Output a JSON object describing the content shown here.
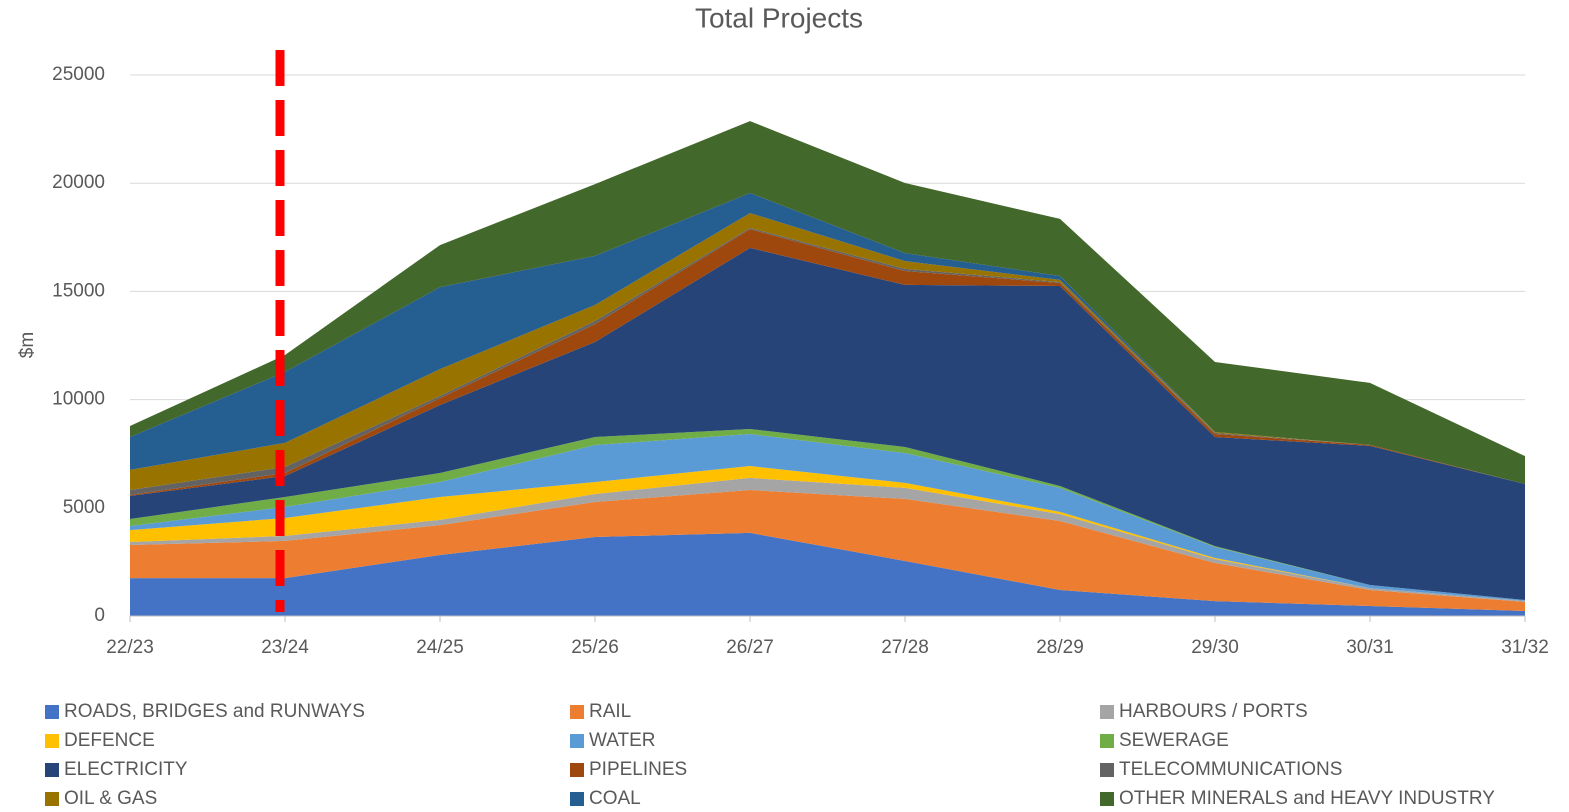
{
  "chart_data": {
    "type": "stacked_area",
    "title": "Total Projects",
    "y_label": "$m",
    "categories": [
      "22/23",
      "23/24",
      "24/25",
      "25/26",
      "26/27",
      "27/28",
      "28/29",
      "29/30",
      "30/31",
      "31/32"
    ],
    "ylim": [
      0,
      25000
    ],
    "yticks": [
      0,
      5000,
      10000,
      15000,
      20000,
      25000
    ],
    "grid": true,
    "series": [
      {
        "name": "ROADS, BRIDGES and RUNWAYS",
        "color": "#4472c4",
        "values": [
          1750,
          1750,
          2820,
          3650,
          3840,
          2540,
          1200,
          690,
          460,
          230
        ]
      },
      {
        "name": "RAIL",
        "color": "#ed7d31",
        "values": [
          1530,
          1720,
          1380,
          1620,
          1980,
          2870,
          3190,
          1760,
          740,
          420
        ]
      },
      {
        "name": "HARBOURS / PORTS",
        "color": "#a5a5a5",
        "values": [
          140,
          230,
          240,
          370,
          560,
          510,
          320,
          180,
          90,
          50
        ]
      },
      {
        "name": "DEFENCE",
        "color": "#ffc000",
        "values": [
          550,
          830,
          1060,
          550,
          550,
          230,
          100,
          50,
          0,
          0
        ]
      },
      {
        "name": "WATER",
        "color": "#5b9bd5",
        "values": [
          190,
          510,
          690,
          1710,
          1480,
          1380,
          1110,
          510,
          140,
          40
        ]
      },
      {
        "name": "SEWERAGE",
        "color": "#70ad47",
        "values": [
          320,
          460,
          420,
          370,
          230,
          280,
          90,
          40,
          0,
          0
        ]
      },
      {
        "name": "ELECTRICITY",
        "color": "#264478",
        "values": [
          1070,
          970,
          3140,
          4390,
          8370,
          7490,
          9240,
          5040,
          6430,
          5360
        ]
      },
      {
        "name": "PIPELINES",
        "color": "#9e480e",
        "values": [
          50,
          140,
          320,
          830,
          870,
          640,
          140,
          140,
          50,
          0
        ]
      },
      {
        "name": "TELECOMMUNICATIONS",
        "color": "#636363",
        "values": [
          220,
          280,
          100,
          140,
          50,
          100,
          40,
          50,
          0,
          0
        ]
      },
      {
        "name": "OIL & GAS",
        "color": "#997300",
        "values": [
          930,
          1110,
          1240,
          740,
          690,
          360,
          100,
          40,
          0,
          0
        ]
      },
      {
        "name": "COAL",
        "color": "#255e91",
        "values": [
          1520,
          3280,
          3790,
          2270,
          930,
          370,
          180,
          0,
          0,
          0
        ]
      },
      {
        "name": "OTHER MINERALS and HEAVY INDUSTRY",
        "color": "#43682b",
        "values": [
          510,
          780,
          1940,
          3320,
          3320,
          3240,
          2640,
          3240,
          2860,
          1290
        ]
      }
    ]
  }
}
